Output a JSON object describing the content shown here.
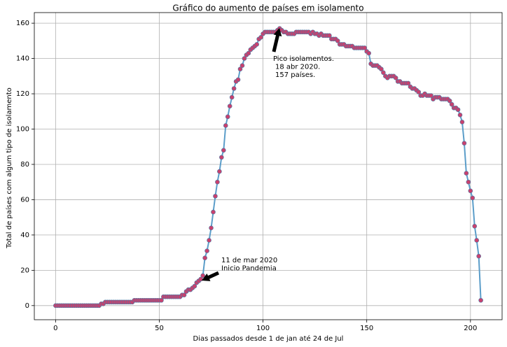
{
  "chart_data": {
    "type": "line",
    "title": "Gráfico do aumento de países em isolamento",
    "x_label": "Dias passados desde 1 de jan até 24 de Jul",
    "y_label": "Total de países com algum tipo de isolamento",
    "x": [
      0,
      1,
      2,
      3,
      4,
      5,
      6,
      7,
      8,
      9,
      10,
      11,
      12,
      13,
      14,
      15,
      16,
      17,
      18,
      19,
      20,
      21,
      22,
      23,
      24,
      25,
      26,
      27,
      28,
      29,
      30,
      31,
      32,
      33,
      34,
      35,
      36,
      37,
      38,
      39,
      40,
      41,
      42,
      43,
      44,
      45,
      46,
      47,
      48,
      49,
      50,
      51,
      52,
      53,
      54,
      55,
      56,
      57,
      58,
      59,
      60,
      61,
      62,
      63,
      64,
      65,
      66,
      67,
      68,
      69,
      70,
      71,
      72,
      73,
      74,
      75,
      76,
      77,
      78,
      79,
      80,
      81,
      82,
      83,
      84,
      85,
      86,
      87,
      88,
      89,
      90,
      91,
      92,
      93,
      94,
      95,
      96,
      97,
      98,
      99,
      100,
      101,
      102,
      103,
      104,
      105,
      106,
      107,
      108,
      109,
      110,
      111,
      112,
      113,
      114,
      115,
      116,
      117,
      118,
      119,
      120,
      121,
      122,
      123,
      124,
      125,
      126,
      127,
      128,
      129,
      130,
      131,
      132,
      133,
      134,
      135,
      136,
      137,
      138,
      139,
      140,
      141,
      142,
      143,
      144,
      145,
      146,
      147,
      148,
      149,
      150,
      151,
      152,
      153,
      154,
      155,
      156,
      157,
      158,
      159,
      160,
      161,
      162,
      163,
      164,
      165,
      166,
      167,
      168,
      169,
      170,
      171,
      172,
      173,
      174,
      175,
      176,
      177,
      178,
      179,
      180,
      181,
      182,
      183,
      184,
      185,
      186,
      187,
      188,
      189,
      190,
      191,
      192,
      193,
      194,
      195,
      196,
      197,
      198,
      199,
      200,
      201,
      202,
      203,
      204,
      205
    ],
    "series": [
      {
        "line_color": "#5b9dc9",
        "marker_color": "#c8416e",
        "marker_edge": "#4a7ba6",
        "values": [
          0,
          0,
          0,
          0,
          0,
          0,
          0,
          0,
          0,
          0,
          0,
          0,
          0,
          0,
          0,
          0,
          0,
          0,
          0,
          0,
          0,
          0,
          1,
          1,
          2,
          2,
          2,
          2,
          2,
          2,
          2,
          2,
          2,
          2,
          2,
          2,
          2,
          2,
          3,
          3,
          3,
          3,
          3,
          3,
          3,
          3,
          3,
          3,
          3,
          3,
          3,
          3,
          5,
          5,
          5,
          5,
          5,
          5,
          5,
          5,
          5,
          6,
          6,
          8,
          9,
          9,
          10,
          11,
          13,
          14,
          15,
          17,
          27,
          31,
          37,
          44,
          53,
          62,
          70,
          76,
          84,
          88,
          102,
          107,
          113,
          118,
          123,
          127,
          128,
          134,
          136,
          140,
          142,
          143,
          145,
          146,
          147,
          148,
          151,
          152,
          154,
          155,
          155,
          155,
          155,
          155,
          155,
          156,
          157,
          156,
          155,
          155,
          154,
          154,
          154,
          154,
          155,
          155,
          155,
          155,
          155,
          155,
          155,
          154,
          155,
          154,
          154,
          153,
          154,
          153,
          153,
          153,
          153,
          151,
          151,
          151,
          150,
          148,
          148,
          148,
          147,
          147,
          147,
          147,
          146,
          146,
          146,
          146,
          146,
          146,
          144,
          143,
          137,
          136,
          136,
          136,
          135,
          134,
          132,
          130,
          129,
          130,
          130,
          130,
          129,
          127,
          127,
          126,
          126,
          126,
          126,
          124,
          123,
          123,
          122,
          121,
          119,
          119,
          120,
          119,
          119,
          119,
          117,
          118,
          118,
          118,
          117,
          117,
          117,
          117,
          116,
          114,
          112,
          112,
          111,
          108,
          104,
          92,
          75,
          70,
          65,
          61,
          45,
          37,
          28,
          3
        ]
      }
    ],
    "xlim": [
      -10.25,
      215.25
    ],
    "ylim": [
      -8,
      166
    ],
    "xticks": [
      0,
      50,
      100,
      150,
      200
    ],
    "yticks": [
      0,
      20,
      40,
      60,
      80,
      100,
      120,
      140,
      160
    ],
    "grid": true,
    "annotations": [
      {
        "text": [
          "Pico isolamentos.",
          "18 abr 2020.",
          "157 países."
        ]
      },
      {
        "text": [
          "11 de mar 2020",
          "Inicio Pandemia"
        ]
      }
    ]
  }
}
